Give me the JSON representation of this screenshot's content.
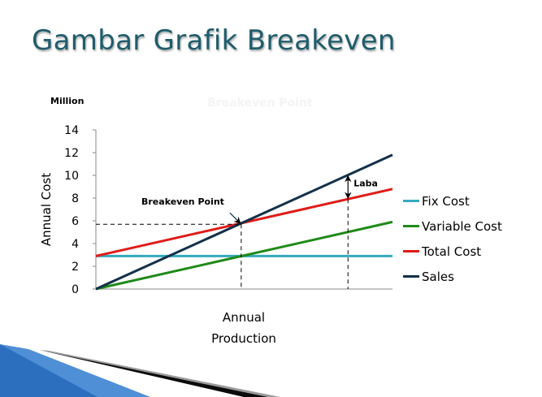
{
  "slide": {
    "title": "Gambar Grafik Breakeven"
  },
  "chart_data": {
    "type": "line",
    "title": "Breakeven Point",
    "unit_label": "Million",
    "ylabel": "Annual Cost",
    "xlabel_lines": [
      "Annual",
      "Production"
    ],
    "ylim": [
      0,
      14
    ],
    "yticks": [
      0,
      2,
      4,
      6,
      8,
      10,
      12,
      14
    ],
    "xlim": [
      0,
      10
    ],
    "x": [
      0,
      10
    ],
    "series": [
      {
        "name": "Fix Cost",
        "color": "#35a9bd",
        "values": [
          2.9,
          2.9
        ]
      },
      {
        "name": "Variable Cost",
        "color": "#1e8a18",
        "values": [
          0,
          5.9
        ]
      },
      {
        "name": "Total Cost",
        "color": "#e01b17",
        "values": [
          2.9,
          8.8
        ]
      },
      {
        "name": "Sales",
        "color": "#13304a",
        "values": [
          0,
          11.8
        ]
      }
    ],
    "annotations": {
      "breakeven": {
        "label": "Breakeven Point",
        "x": 4.9,
        "y": 5.7
      },
      "profit": {
        "label": "Laba",
        "x": 8.5
      }
    },
    "grid": false,
    "legend_position": "right"
  }
}
